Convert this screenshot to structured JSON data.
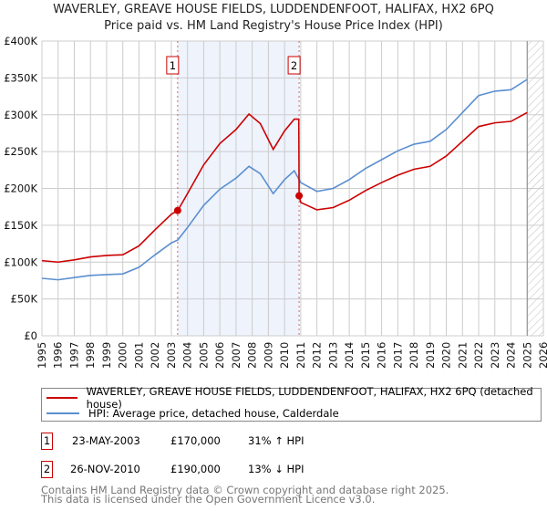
{
  "chart_data": {
    "type": "line",
    "title": "WAVERLEY, GREAVE HOUSE FIELDS, LUDDENDENFOOT, HALIFAX, HX2 6PQ",
    "subtitle": "Price paid vs. HM Land Registry's House Price Index (HPI)",
    "xlim": [
      1995,
      2026
    ],
    "ylim": [
      0,
      400000
    ],
    "x_ticks": [
      "1995",
      "1996",
      "1997",
      "1998",
      "1999",
      "2000",
      "2001",
      "2002",
      "2003",
      "2004",
      "2005",
      "2006",
      "2007",
      "2008",
      "2009",
      "2010",
      "2011",
      "2012",
      "2013",
      "2014",
      "2015",
      "2016",
      "2017",
      "2018",
      "2019",
      "2020",
      "2021",
      "2022",
      "2023",
      "2024",
      "2025",
      "2026"
    ],
    "y_ticks": [
      {
        "v": 0,
        "label": "£0"
      },
      {
        "v": 50000,
        "label": "£50K"
      },
      {
        "v": 100000,
        "label": "£100K"
      },
      {
        "v": 150000,
        "label": "£150K"
      },
      {
        "v": 200000,
        "label": "£200K"
      },
      {
        "v": 250000,
        "label": "£250K"
      },
      {
        "v": 300000,
        "label": "£300K"
      },
      {
        "v": 350000,
        "label": "£350K"
      },
      {
        "v": 400000,
        "label": "£400K"
      }
    ],
    "grid": true,
    "series": [
      {
        "name": "WAVERLEY, GREAVE HOUSE FIELDS, LUDDENDENFOOT, HALIFAX, HX2 6PQ (detached house)",
        "color": "#cc0000",
        "x": [
          1995,
          1996,
          1997,
          1998,
          1999,
          2000,
          2001,
          2002,
          2003,
          2003.4,
          2004,
          2005,
          2006,
          2007,
          2007.8,
          2008.5,
          2009.3,
          2010,
          2010.6,
          2010.88,
          2010.9,
          2011,
          2012,
          2013,
          2014,
          2015,
          2016,
          2017,
          2018,
          2019,
          2020,
          2021,
          2022,
          2023,
          2024,
          2025
        ],
        "y": [
          102000,
          100000,
          103000,
          107000,
          109000,
          110000,
          122000,
          144000,
          165000,
          170000,
          193000,
          232000,
          261000,
          280000,
          301000,
          288000,
          253000,
          278000,
          294000,
          294000,
          190000,
          181000,
          171000,
          174000,
          184000,
          197000,
          208000,
          218000,
          226000,
          230000,
          244000,
          264000,
          284000,
          289000,
          291000,
          303000
        ]
      },
      {
        "name": "HPI: Average price, detached house, Calderdale",
        "color": "#5b8fd0",
        "x": [
          1995,
          1996,
          1997,
          1998,
          1999,
          2000,
          2001,
          2002,
          2003,
          2003.4,
          2004,
          2005,
          2006,
          2007,
          2007.8,
          2008.5,
          2009.3,
          2010,
          2010.6,
          2011,
          2012,
          2013,
          2014,
          2015,
          2016,
          2017,
          2018,
          2019,
          2020,
          2021,
          2022,
          2023,
          2024,
          2025
        ],
        "y": [
          78000,
          76000,
          79000,
          82000,
          83000,
          84000,
          93000,
          110000,
          126000,
          130000,
          147000,
          177000,
          199000,
          214000,
          230000,
          220000,
          193000,
          212000,
          224000,
          208000,
          196000,
          200000,
          212000,
          227000,
          239000,
          251000,
          260000,
          264000,
          280000,
          303000,
          326000,
          332000,
          334000,
          348000
        ]
      }
    ],
    "sales": [
      {
        "n": "1",
        "x": 2003.39,
        "y": 170000
      },
      {
        "n": "2",
        "x": 2010.9,
        "y": 190000
      }
    ],
    "shaded_range": [
      2003.39,
      2010.9
    ],
    "forecast_hatch_from": 2025
  },
  "legend": {
    "red": "WAVERLEY, GREAVE HOUSE FIELDS, LUDDENDENFOOT, HALIFAX, HX2 6PQ (detached house)",
    "blue": "HPI: Average price, detached house, Calderdale"
  },
  "transactions": [
    {
      "n": "1",
      "date": "23-MAY-2003",
      "price": "£170,000",
      "hpi": "31% ↑ HPI"
    },
    {
      "n": "2",
      "date": "26-NOV-2010",
      "price": "£190,000",
      "hpi": "13% ↓ HPI"
    }
  ],
  "footer": [
    "Contains HM Land Registry data © Crown copyright and database right 2025.",
    "This data is licensed under the Open Government Licence v3.0."
  ]
}
